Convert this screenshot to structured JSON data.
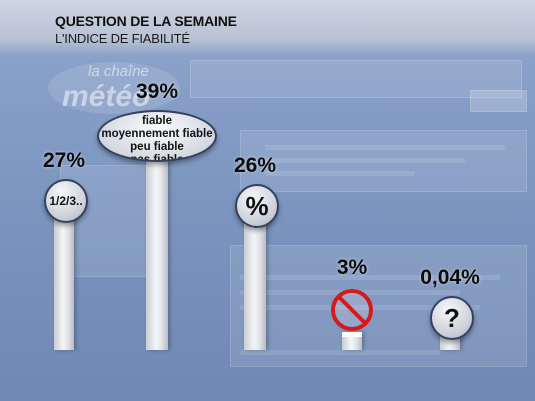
{
  "header": {
    "title": "QUESTION DE LA SEMAINE",
    "subtitle": "L'INDICE DE FIABILITÉ"
  },
  "logo": {
    "line1": "la chaîne",
    "line2": "météo"
  },
  "chart_data": {
    "type": "bar",
    "title": "QUESTION DE LA SEMAINE",
    "subtitle": "L'INDICE DE FIABILITÉ",
    "categories": [
      "1/2/3..",
      "fiable / moyennement fiable / peu fiable / pas fiable",
      "%",
      "no-symbol",
      "?"
    ],
    "values": [
      27,
      39,
      26,
      3,
      0.04
    ],
    "value_labels": [
      "27%",
      "39%",
      "26%",
      "3%",
      "0,04%"
    ],
    "icon_labels": [
      "1/2/3..",
      "",
      "%",
      "",
      "?"
    ],
    "pill_lines": [
      "fiable",
      "moyennement fiable",
      "peu fiable",
      "pas fiable"
    ],
    "icons": [
      "number-scale-icon",
      "reliability-words-icon",
      "percent-icon",
      "prohibited-icon",
      "question-mark-icon"
    ],
    "ylim": [
      0,
      39
    ],
    "grid": false,
    "colors": {
      "bar": "#e6e8ec",
      "bubble_border": "#33415e",
      "prohibited": "#d51a1a"
    }
  }
}
